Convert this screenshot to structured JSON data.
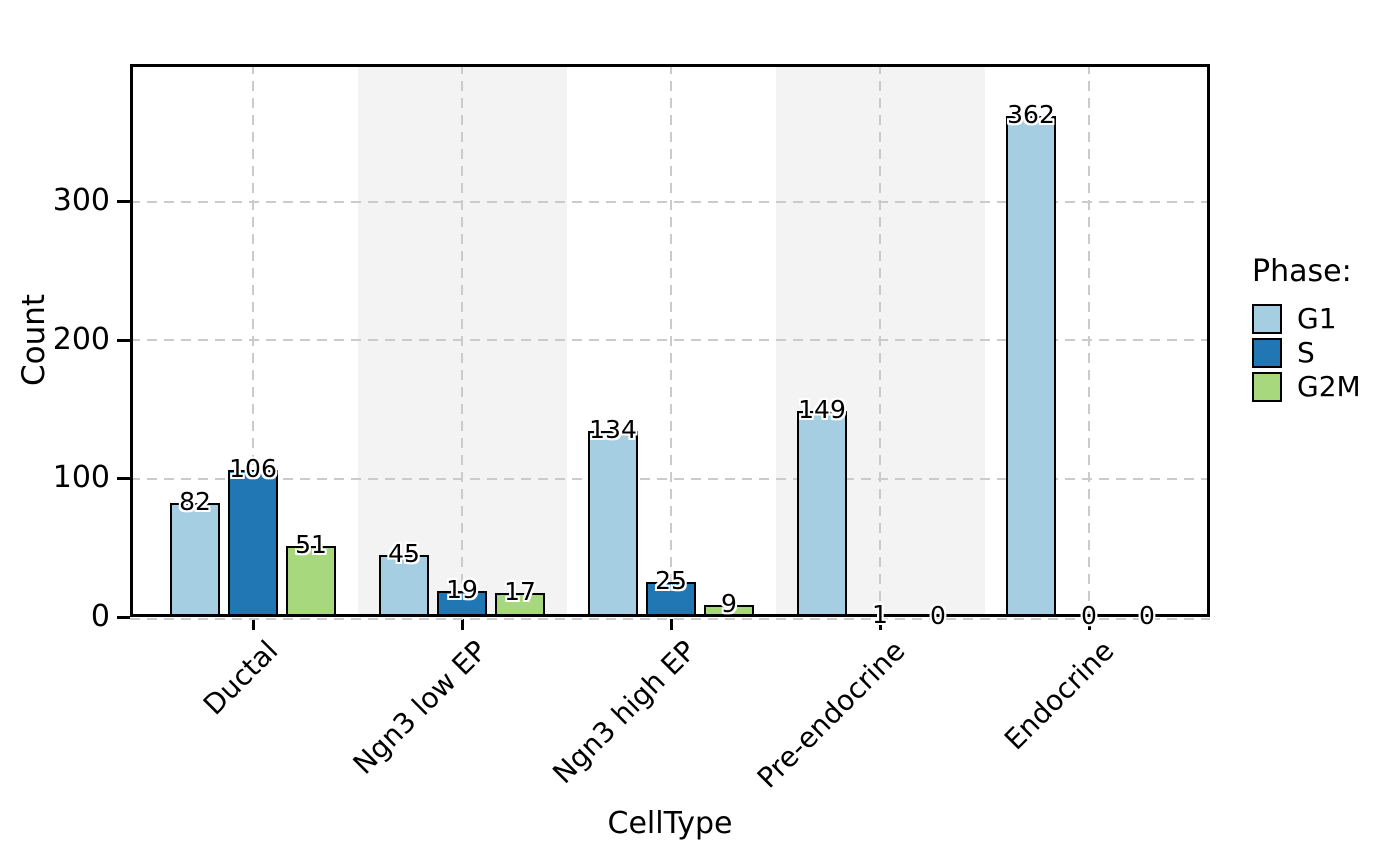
{
  "chart_data": {
    "type": "bar",
    "title": "",
    "xlabel": "CellType",
    "ylabel": "Count",
    "categories": [
      "Ductal",
      "Ngn3 low EP",
      "Ngn3 high EP",
      "Pre-endocrine",
      "Endocrine"
    ],
    "series": [
      {
        "name": "G1",
        "color": "#a6cee3",
        "values": [
          82,
          45,
          134,
          149,
          362
        ]
      },
      {
        "name": "S",
        "color": "#2177b4",
        "values": [
          106,
          19,
          25,
          1,
          0
        ]
      },
      {
        "name": "G2M",
        "color": "#a7d87e",
        "values": [
          51,
          17,
          9,
          0,
          0
        ]
      }
    ],
    "bar_value_labels": [
      [
        "82",
        "45",
        "134",
        "149",
        "362"
      ],
      [
        "106",
        "19",
        "25",
        "1",
        "0"
      ],
      [
        "51",
        "17",
        "9",
        "0",
        "0"
      ]
    ],
    "legend_title": "Phase:",
    "legend_position": "right",
    "legend_entries": [
      "G1",
      "S",
      "G2M"
    ],
    "yticks": [
      0,
      100,
      200,
      300
    ],
    "ytick_labels": [
      "0",
      "100",
      "200",
      "300"
    ],
    "ylim": [
      0,
      399
    ],
    "grid": "dashed-both-axes",
    "gridline_color": "#cbcbcb",
    "shaded_category_indices": [
      1,
      3
    ],
    "shade_color": "#f3f3f3",
    "bar_edge_color": "#000000",
    "value_label_style": "black-text-white-halo"
  }
}
